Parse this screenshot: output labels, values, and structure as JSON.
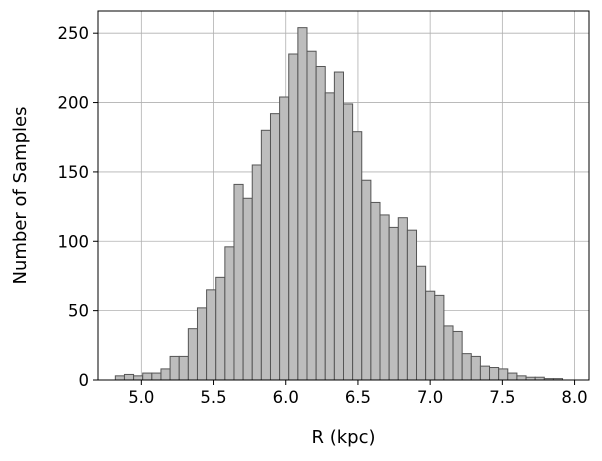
{
  "chart_data": {
    "type": "bar",
    "xlabel": "R (kpc)",
    "ylabel": "Number of Samples",
    "xlim": [
      4.7,
      8.1
    ],
    "ylim": [
      0,
      266
    ],
    "grid": true,
    "bin_start": 4.82,
    "bin_width": 0.0632,
    "bar_color": "#bdbdbd",
    "edge_color": "#555555",
    "values": [
      3,
      4,
      3,
      5,
      5,
      8,
      17,
      17,
      37,
      52,
      65,
      74,
      96,
      141,
      131,
      155,
      180,
      192,
      204,
      235,
      254,
      237,
      226,
      207,
      222,
      199,
      179,
      144,
      128,
      119,
      110,
      117,
      108,
      82,
      64,
      61,
      39,
      35,
      19,
      17,
      10,
      9,
      8,
      5,
      3,
      2,
      2,
      1,
      1
    ],
    "x_ticks": [
      5.0,
      5.5,
      6.0,
      6.5,
      7.0,
      7.5,
      8.0
    ],
    "x_tick_labels": [
      "5.0",
      "5.5",
      "6.0",
      "6.5",
      "7.0",
      "7.5",
      "8.0"
    ],
    "y_ticks": [
      0,
      50,
      100,
      150,
      200,
      250
    ],
    "y_tick_labels": [
      "0",
      "50",
      "100",
      "150",
      "200",
      "250"
    ]
  }
}
